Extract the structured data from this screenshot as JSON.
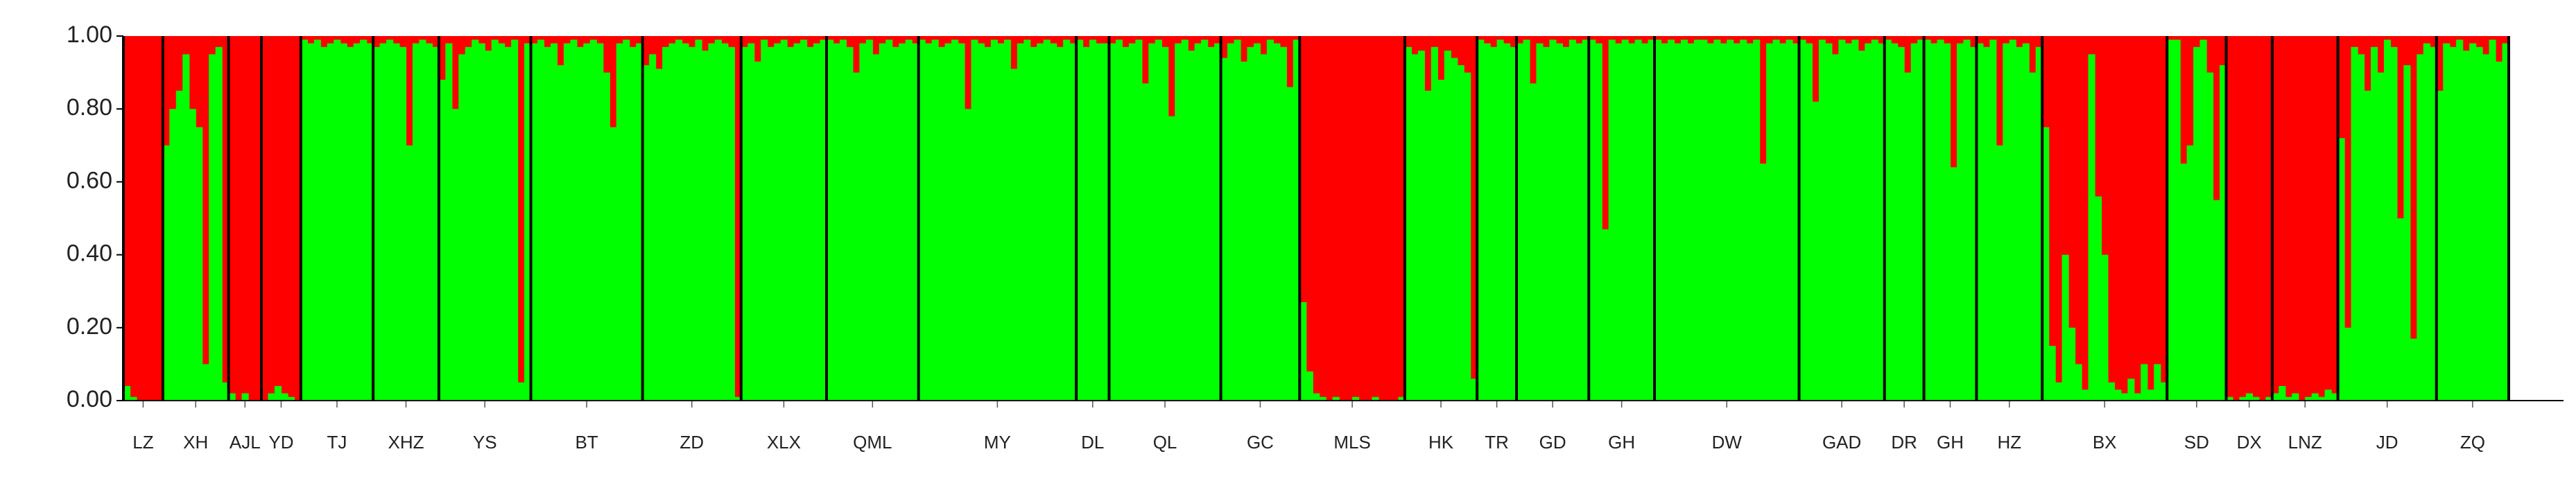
{
  "chart_data": {
    "type": "structure",
    "colors": [
      "#ff0000",
      "#00ff00"
    ],
    "ylim": [
      0,
      1
    ],
    "yticks": [
      {
        "value": 0,
        "label": "0.00"
      },
      {
        "value": 0.2,
        "label": "0.20"
      },
      {
        "value": 0.4,
        "label": "0.40"
      },
      {
        "value": 0.6,
        "label": "0.60"
      },
      {
        "value": 0.8,
        "label": "0.80"
      },
      {
        "value": 1,
        "label": "1.00"
      }
    ],
    "groups": [
      {
        "name": "LZ",
        "values": [
          0.04,
          0.01,
          0,
          0,
          0,
          0
        ]
      },
      {
        "name": "XH",
        "values": [
          0.7,
          0.8,
          0.85,
          0.95,
          0.8,
          0.75,
          0.1,
          0.95,
          0.97,
          0.05
        ]
      },
      {
        "name": "AJL",
        "values": [
          0.02,
          0,
          0.02,
          0,
          0
        ]
      },
      {
        "name": "YD",
        "values": [
          0,
          0.02,
          0.04,
          0.02,
          0.01,
          0
        ]
      },
      {
        "name": "TJ",
        "values": [
          0.99,
          0.98,
          0.99,
          0.97,
          0.98,
          0.99,
          0.98,
          0.97,
          0.98,
          0.99,
          0.98
        ]
      },
      {
        "name": "XHZ",
        "values": [
          0.97,
          0.98,
          0.99,
          0.98,
          0.97,
          0.7,
          0.98,
          0.99,
          0.98,
          0.97
        ]
      },
      {
        "name": "YS",
        "values": [
          0.88,
          0.98,
          0.8,
          0.95,
          0.97,
          0.99,
          0.98,
          0.96,
          0.99,
          0.98,
          0.97,
          0.99,
          0.05,
          0.98
        ]
      },
      {
        "name": "BT",
        "values": [
          0.98,
          0.99,
          0.97,
          0.98,
          0.92,
          0.98,
          0.99,
          0.97,
          0.98,
          0.99,
          0.98,
          0.9,
          0.75,
          0.98,
          0.99,
          0.97,
          0.98
        ]
      },
      {
        "name": "ZD",
        "values": [
          0.92,
          0.95,
          0.91,
          0.97,
          0.98,
          0.99,
          0.98,
          0.97,
          0.99,
          0.96,
          0.98,
          0.99,
          0.98,
          0.97,
          0.01
        ]
      },
      {
        "name": "XLX",
        "values": [
          0.97,
          0.98,
          0.93,
          0.99,
          0.97,
          0.98,
          0.99,
          0.97,
          0.98,
          0.99,
          0.97,
          0.98,
          0.99
        ]
      },
      {
        "name": "QML",
        "values": [
          0.99,
          0.98,
          0.99,
          0.97,
          0.9,
          0.98,
          0.99,
          0.95,
          0.98,
          0.99,
          0.97,
          0.98,
          0.99,
          0.98
        ]
      },
      {
        "name": "MY",
        "values": [
          0.99,
          0.98,
          0.99,
          0.97,
          0.98,
          0.99,
          0.98,
          0.8,
          0.99,
          0.98,
          0.97,
          0.99,
          0.98,
          0.99,
          0.91,
          0.98,
          0.99,
          0.97,
          0.98,
          0.99,
          0.98,
          0.97,
          0.99,
          0.98
        ]
      },
      {
        "name": "DL",
        "values": [
          0.99,
          0.97,
          0.99,
          0.98,
          0.98
        ]
      },
      {
        "name": "QL",
        "values": [
          0.98,
          0.99,
          0.97,
          0.98,
          0.99,
          0.87,
          0.98,
          0.99,
          0.97,
          0.78,
          0.98,
          0.99,
          0.96,
          0.98,
          0.99,
          0.97,
          0.98
        ]
      },
      {
        "name": "GC",
        "values": [
          0.94,
          0.98,
          0.99,
          0.93,
          0.97,
          0.98,
          0.95,
          0.99,
          0.98,
          0.97,
          0.86,
          0.99
        ]
      },
      {
        "name": "MLS",
        "values": [
          0.27,
          0.08,
          0.02,
          0.01,
          0,
          0.01,
          0,
          0,
          0.01,
          0,
          0,
          0.01,
          0,
          0,
          0,
          0.01
        ]
      },
      {
        "name": "HK",
        "values": [
          0.97,
          0.95,
          0.96,
          0.85,
          0.97,
          0.88,
          0.96,
          0.94,
          0.92,
          0.9,
          0.06
        ]
      },
      {
        "name": "TR",
        "values": [
          0.99,
          0.98,
          0.97,
          0.99,
          0.98,
          0.97
        ]
      },
      {
        "name": "GD",
        "values": [
          0.98,
          0.99,
          0.87,
          0.98,
          0.97,
          0.99,
          0.98,
          0.97,
          0.99,
          0.98,
          0.99
        ]
      },
      {
        "name": "GH",
        "values": [
          0.99,
          0.98,
          0.47,
          0.99,
          0.98,
          0.99,
          0.98,
          0.99,
          0.98,
          0.99
        ]
      },
      {
        "name": "DW",
        "values": [
          0.99,
          0.98,
          0.99,
          0.98,
          0.99,
          0.98,
          0.99,
          0.99,
          0.98,
          0.99,
          0.98,
          0.99,
          0.98,
          0.99,
          0.98,
          0.99,
          0.65,
          0.98,
          0.99,
          0.98,
          0.99,
          0.98
        ]
      },
      {
        "name": "GAD",
        "values": [
          0.99,
          0.98,
          0.82,
          0.99,
          0.98,
          0.95,
          0.99,
          0.98,
          0.99,
          0.96,
          0.98,
          0.99,
          0.98
        ]
      },
      {
        "name": "DR",
        "values": [
          0.99,
          0.98,
          0.97,
          0.9,
          0.98,
          0.99
        ]
      },
      {
        "name": "GH",
        "values": [
          0.99,
          0.98,
          0.99,
          0.98,
          0.64,
          0.98,
          0.99,
          0.97
        ]
      },
      {
        "name": "HZ",
        "values": [
          0.98,
          0.97,
          0.99,
          0.7,
          0.98,
          0.99,
          0.97,
          0.98,
          0.9,
          0.97
        ]
      },
      {
        "name": "BX",
        "values": [
          0.75,
          0.15,
          0.05,
          0.4,
          0.2,
          0.1,
          0.03,
          0.95,
          0.56,
          0.4,
          0.05,
          0.03,
          0.02,
          0.06,
          0.02,
          0.1,
          0.03,
          0.1,
          0.05
        ]
      },
      {
        "name": "SD",
        "values": [
          0.99,
          0.99,
          0.65,
          0.7,
          0.97,
          0.99,
          0.9,
          0.55,
          0.92
        ]
      },
      {
        "name": "DX",
        "values": [
          0.01,
          0,
          0.01,
          0.02,
          0.01,
          0,
          0.01
        ]
      },
      {
        "name": "LNZ",
        "values": [
          0.02,
          0.04,
          0.01,
          0.02,
          0,
          0.01,
          0.02,
          0.01,
          0.03,
          0.02
        ]
      },
      {
        "name": "JD",
        "values": [
          0.72,
          0.2,
          0.97,
          0.95,
          0.85,
          0.97,
          0.9,
          0.99,
          0.97,
          0.5,
          0.92,
          0.17,
          0.95,
          0.98,
          0.97
        ]
      },
      {
        "name": "ZQ",
        "values": [
          0.85,
          0.98,
          0.97,
          0.99,
          0.96,
          0.98,
          0.97,
          0.95,
          0.99,
          0.93,
          0.98
        ]
      }
    ]
  }
}
